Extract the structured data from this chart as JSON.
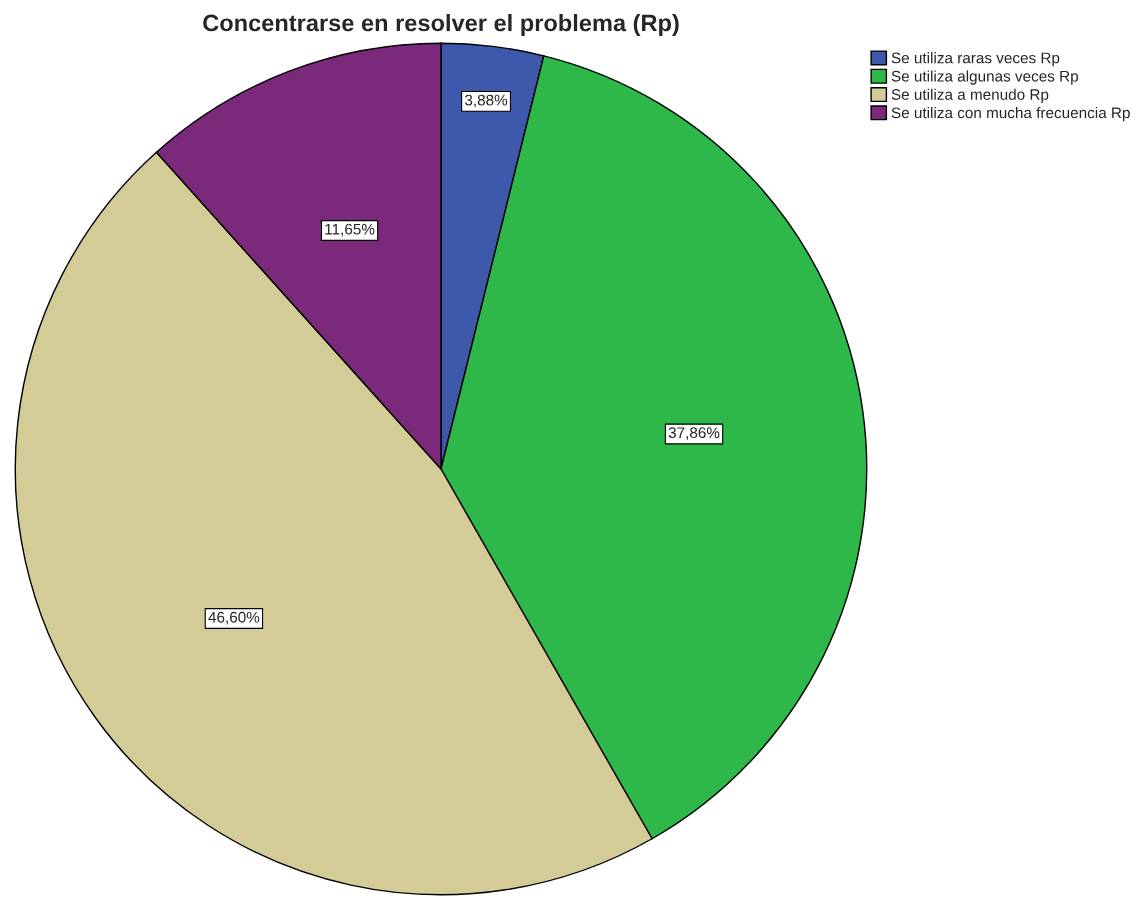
{
  "chart_data": {
    "type": "pie",
    "title": "Concentrarse en resolver el problema (Rp)",
    "categories": [
      "Se utiliza raras veces Rp",
      "Se utiliza algunas veces Rp",
      "Se utiliza a menudo Rp",
      "Se utiliza con mucha frecuencia Rp"
    ],
    "values": [
      3.88,
      37.86,
      46.6,
      11.65
    ],
    "value_labels": [
      "3,88%",
      "37,86%",
      "46,60%",
      "11,65%"
    ],
    "colors": [
      "#3e58ac",
      "#2fb84a",
      "#d4cc96",
      "#7b2a7b"
    ],
    "legend": "top right"
  }
}
